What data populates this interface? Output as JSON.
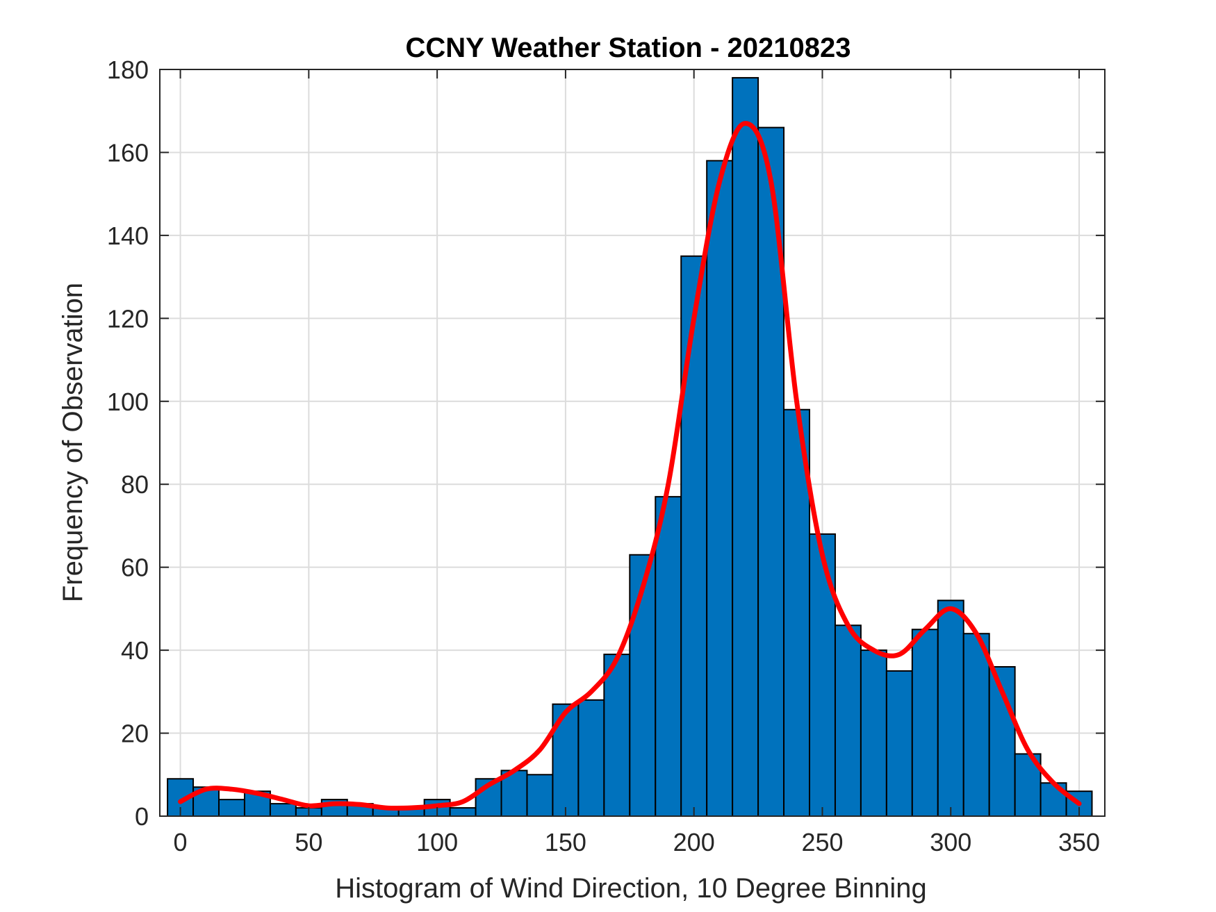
{
  "chart_data": {
    "type": "bar",
    "title": "CCNY Weather Station - 20210823",
    "xlabel": "Histogram of Wind Direction, 10 Degree Binning",
    "ylabel": "Frequency of Observation",
    "xlim": [
      -8,
      360
    ],
    "ylim": [
      0,
      180
    ],
    "xticks": [
      0,
      50,
      100,
      150,
      200,
      250,
      300,
      350
    ],
    "yticks": [
      0,
      20,
      40,
      60,
      80,
      100,
      120,
      140,
      160,
      180
    ],
    "grid": true,
    "bin_width": 10,
    "bins": [
      {
        "x": 0,
        "value": 9
      },
      {
        "x": 10,
        "value": 7
      },
      {
        "x": 20,
        "value": 4
      },
      {
        "x": 30,
        "value": 6
      },
      {
        "x": 40,
        "value": 3
      },
      {
        "x": 50,
        "value": 2
      },
      {
        "x": 60,
        "value": 4
      },
      {
        "x": 70,
        "value": 3
      },
      {
        "x": 80,
        "value": 2
      },
      {
        "x": 90,
        "value": 2
      },
      {
        "x": 100,
        "value": 4
      },
      {
        "x": 110,
        "value": 2
      },
      {
        "x": 120,
        "value": 9
      },
      {
        "x": 130,
        "value": 11
      },
      {
        "x": 140,
        "value": 10
      },
      {
        "x": 150,
        "value": 27
      },
      {
        "x": 160,
        "value": 28
      },
      {
        "x": 170,
        "value": 39
      },
      {
        "x": 180,
        "value": 63
      },
      {
        "x": 190,
        "value": 77
      },
      {
        "x": 200,
        "value": 135
      },
      {
        "x": 210,
        "value": 158
      },
      {
        "x": 220,
        "value": 178
      },
      {
        "x": 230,
        "value": 166
      },
      {
        "x": 240,
        "value": 98
      },
      {
        "x": 250,
        "value": 68
      },
      {
        "x": 260,
        "value": 46
      },
      {
        "x": 270,
        "value": 40
      },
      {
        "x": 280,
        "value": 35
      },
      {
        "x": 290,
        "value": 45
      },
      {
        "x": 300,
        "value": 52
      },
      {
        "x": 310,
        "value": 44
      },
      {
        "x": 320,
        "value": 36
      },
      {
        "x": 330,
        "value": 15
      },
      {
        "x": 340,
        "value": 8
      },
      {
        "x": 350,
        "value": 6
      }
    ],
    "fit_curve": {
      "color": "#ff0000",
      "points": [
        [
          0,
          3.5
        ],
        [
          10,
          6.5
        ],
        [
          20,
          6.5
        ],
        [
          30,
          5.5
        ],
        [
          40,
          4
        ],
        [
          50,
          2.5
        ],
        [
          60,
          3
        ],
        [
          70,
          2.8
        ],
        [
          80,
          2
        ],
        [
          90,
          2
        ],
        [
          100,
          2.5
        ],
        [
          110,
          3.5
        ],
        [
          120,
          7.5
        ],
        [
          130,
          11
        ],
        [
          140,
          16
        ],
        [
          150,
          25
        ],
        [
          160,
          30
        ],
        [
          170,
          38
        ],
        [
          180,
          55
        ],
        [
          190,
          80
        ],
        [
          200,
          120
        ],
        [
          210,
          153
        ],
        [
          220,
          167
        ],
        [
          230,
          153
        ],
        [
          240,
          100
        ],
        [
          250,
          63
        ],
        [
          260,
          46
        ],
        [
          270,
          40
        ],
        [
          280,
          39
        ],
        [
          290,
          45
        ],
        [
          300,
          50
        ],
        [
          310,
          44
        ],
        [
          320,
          30
        ],
        [
          330,
          16
        ],
        [
          340,
          8
        ],
        [
          350,
          3
        ]
      ]
    },
    "bar_color": "#0072bd",
    "bar_edge_color": "#000000"
  }
}
